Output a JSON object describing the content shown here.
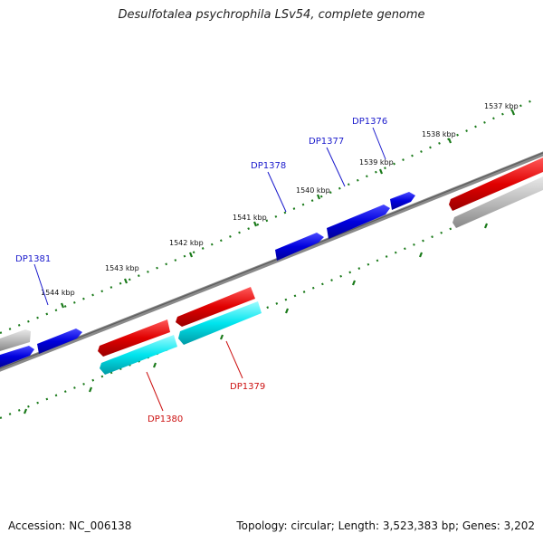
{
  "title": "Desulfotalea psychrophila LSv54, complete genome",
  "footer": {
    "accession": "Accession: NC_006138",
    "summary": "Topology: circular; Length: 3,523,383 bp; Genes: 3,202"
  },
  "scale_labels": [
    "1537 kbp",
    "1538 kbp",
    "1539 kbp",
    "1540 kbp",
    "1541 kbp",
    "1542 kbp",
    "1543 kbp",
    "1544 kbp"
  ],
  "gene_labels": {
    "forward": [
      "DP1376",
      "DP1377",
      "DP1378",
      "DP1381"
    ],
    "reverse": [
      "DP1379",
      "DP1380"
    ]
  },
  "colors": {
    "forward_gene": "#0000dd",
    "forward_label": "#1a1acc",
    "reverse_gene": "#e00000",
    "reverse_label": "#cc1111",
    "rna_gene": "#00e5ee",
    "other_gene": "#bbbbbb",
    "backbone": "#777777",
    "tick": "#1a7a1a"
  }
}
